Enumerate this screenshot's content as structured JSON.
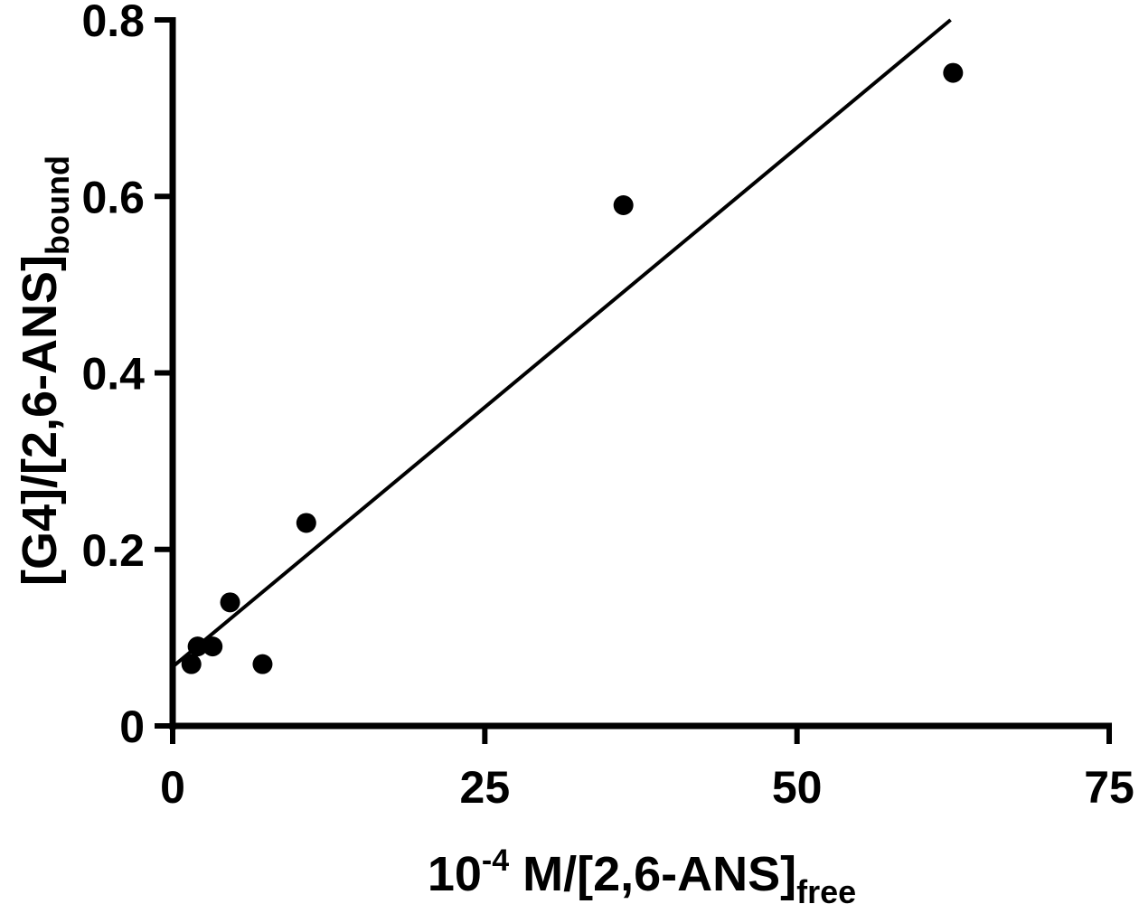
{
  "chart_data": {
    "type": "scatter",
    "xlabel": {
      "base": "10",
      "exp": "-4",
      "main": " M/[2,6-ANS]",
      "sub": "free"
    },
    "ylabel": {
      "main": "[G4]/[2,6-ANS]",
      "sub": "bound"
    },
    "xlim": [
      0,
      75
    ],
    "ylim": [
      0,
      0.8
    ],
    "xticks": [
      0,
      25,
      50,
      75
    ],
    "yticks": [
      0,
      0.2,
      0.4,
      0.6,
      0.8
    ],
    "xtick_labels": [
      "0",
      "25",
      "50",
      "75"
    ],
    "ytick_labels": [
      "0",
      "0.2",
      "0.4",
      "0.6",
      "0.8"
    ],
    "grid": false,
    "series": [
      {
        "type": "scatter",
        "color": "#000000",
        "points": [
          {
            "x": 1.5,
            "y": 0.07
          },
          {
            "x": 2.0,
            "y": 0.09
          },
          {
            "x": 3.2,
            "y": 0.09
          },
          {
            "x": 4.6,
            "y": 0.14
          },
          {
            "x": 7.2,
            "y": 0.07
          },
          {
            "x": 10.7,
            "y": 0.23
          },
          {
            "x": 36.1,
            "y": 0.59
          },
          {
            "x": 62.5,
            "y": 0.74
          }
        ]
      }
    ],
    "fit_line": {
      "type": "line",
      "color": "#000000",
      "x": [
        0,
        62.3
      ],
      "y": [
        0.067,
        0.8
      ]
    }
  }
}
